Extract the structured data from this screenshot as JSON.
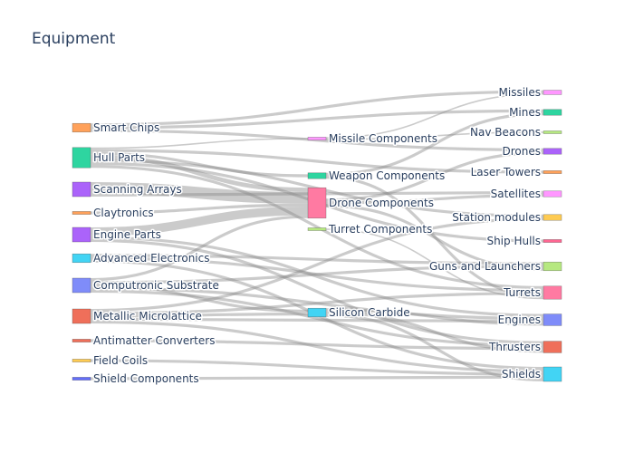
{
  "title": "Equipment",
  "diagram": {
    "type": "sankey",
    "nodes": [
      {
        "id": "smart_chips",
        "label": "Smart Chips",
        "color": "#FFA15A"
      },
      {
        "id": "hull_parts",
        "label": "Hull Parts",
        "color": "#2ED5A0"
      },
      {
        "id": "scanning_arrays",
        "label": "Scanning Arrays",
        "color": "#AB63FA"
      },
      {
        "id": "claytronics",
        "label": "Claytronics",
        "color": "#FFA15A"
      },
      {
        "id": "engine_parts",
        "label": "Engine Parts",
        "color": "#AB63FA"
      },
      {
        "id": "advanced_electronics",
        "label": "Advanced Electronics",
        "color": "#42D4F4"
      },
      {
        "id": "computronic_substrate",
        "label": "Computronic Substrate",
        "color": "#7F8CF9"
      },
      {
        "id": "metallic_microlattice",
        "label": "Metallic Microlattice",
        "color": "#EF6F5A"
      },
      {
        "id": "antimatter_converters",
        "label": "Antimatter Converters",
        "color": "#EF6F5A"
      },
      {
        "id": "field_coils",
        "label": "Field Coils",
        "color": "#FECB52"
      },
      {
        "id": "shield_components",
        "label": "Shield Components",
        "color": "#636EFA"
      },
      {
        "id": "missile_components",
        "label": "Missile Components",
        "color": "#FF97FF"
      },
      {
        "id": "weapon_components",
        "label": "Weapon Components",
        "color": "#2ED5A0"
      },
      {
        "id": "drone_components",
        "label": "Drone Components",
        "color": "#FF7AA2"
      },
      {
        "id": "turret_components",
        "label": "Turret Components",
        "color": "#B6E880"
      },
      {
        "id": "silicon_carbide",
        "label": "Silicon Carbide",
        "color": "#42D4F4"
      },
      {
        "id": "missiles",
        "label": "Missiles",
        "color": "#FF97FF"
      },
      {
        "id": "mines",
        "label": "Mines",
        "color": "#2ED5A0"
      },
      {
        "id": "nav_beacons",
        "label": "Nav Beacons",
        "color": "#B6E880"
      },
      {
        "id": "drones",
        "label": "Drones",
        "color": "#AB63FA"
      },
      {
        "id": "laser_towers",
        "label": "Laser Towers",
        "color": "#FFA15A"
      },
      {
        "id": "satellites",
        "label": "Satellites",
        "color": "#FF97FF"
      },
      {
        "id": "station_modules",
        "label": "Station modules",
        "color": "#FECB52"
      },
      {
        "id": "ship_hulls",
        "label": "Ship Hulls",
        "color": "#FF6692"
      },
      {
        "id": "guns_and_launchers",
        "label": "Guns and Launchers",
        "color": "#B6E880"
      },
      {
        "id": "turrets",
        "label": "Turrets",
        "color": "#FF7AA2"
      },
      {
        "id": "engines",
        "label": "Engines",
        "color": "#7F8CF9"
      },
      {
        "id": "thrusters",
        "label": "Thrusters",
        "color": "#EF6F5A"
      },
      {
        "id": "shields",
        "label": "Shields",
        "color": "#42D4F4"
      }
    ],
    "links": [
      {
        "source": "smart_chips",
        "target": "missiles",
        "value": 2
      },
      {
        "source": "smart_chips",
        "target": "mines",
        "value": 2
      },
      {
        "source": "smart_chips",
        "target": "drones",
        "value": 2
      },
      {
        "source": "hull_parts",
        "target": "missile_components",
        "value": 1
      },
      {
        "source": "hull_parts",
        "target": "weapon_components",
        "value": 2
      },
      {
        "source": "hull_parts",
        "target": "drone_components",
        "value": 3
      },
      {
        "source": "hull_parts",
        "target": "ship_hulls",
        "value": 2
      },
      {
        "source": "hull_parts",
        "target": "station_modules",
        "value": 2
      },
      {
        "source": "hull_parts",
        "target": "turrets",
        "value": 2
      },
      {
        "source": "hull_parts",
        "target": "laser_towers",
        "value": 2
      },
      {
        "source": "scanning_arrays",
        "target": "drone_components",
        "value": 8
      },
      {
        "source": "scanning_arrays",
        "target": "satellites",
        "value": 2
      },
      {
        "source": "claytronics",
        "target": "drone_components",
        "value": 2
      },
      {
        "source": "engine_parts",
        "target": "drone_components",
        "value": 6
      },
      {
        "source": "engine_parts",
        "target": "engines",
        "value": 2
      },
      {
        "source": "engine_parts",
        "target": "thrusters",
        "value": 2
      },
      {
        "source": "advanced_electronics",
        "target": "guns_and_launchers",
        "value": 2
      },
      {
        "source": "advanced_electronics",
        "target": "turrets",
        "value": 2
      },
      {
        "source": "advanced_electronics",
        "target": "shields",
        "value": 2
      },
      {
        "source": "computronic_substrate",
        "target": "silicon_carbide",
        "value": 2
      },
      {
        "source": "computronic_substrate",
        "target": "drone_components",
        "value": 2
      },
      {
        "source": "computronic_substrate",
        "target": "engines",
        "value": 2
      },
      {
        "source": "computronic_substrate",
        "target": "thrusters",
        "value": 2
      },
      {
        "source": "computronic_substrate",
        "target": "guns_and_launchers",
        "value": 2
      },
      {
        "source": "metallic_microlattice",
        "target": "silicon_carbide",
        "value": 2
      },
      {
        "source": "metallic_microlattice",
        "target": "station_modules",
        "value": 2
      },
      {
        "source": "metallic_microlattice",
        "target": "turrets",
        "value": 2
      },
      {
        "source": "metallic_microlattice",
        "target": "engines",
        "value": 2
      },
      {
        "source": "metallic_microlattice",
        "target": "shields",
        "value": 2
      },
      {
        "source": "antimatter_converters",
        "target": "thrusters",
        "value": 2
      },
      {
        "source": "field_coils",
        "target": "shields",
        "value": 2
      },
      {
        "source": "shield_components",
        "target": "shields",
        "value": 2
      },
      {
        "source": "missile_components",
        "target": "missiles",
        "value": 1
      },
      {
        "source": "missile_components",
        "target": "nav_beacons",
        "value": 1
      },
      {
        "source": "weapon_components",
        "target": "mines",
        "value": 2
      },
      {
        "source": "weapon_components",
        "target": "turrets",
        "value": 2
      },
      {
        "source": "drone_components",
        "target": "drones",
        "value": 2
      },
      {
        "source": "drone_components",
        "target": "satellites",
        "value": 2
      },
      {
        "source": "drone_components",
        "target": "guns_and_launchers",
        "value": 2
      },
      {
        "source": "turret_components",
        "target": "turrets",
        "value": 1
      },
      {
        "source": "silicon_carbide",
        "target": "engines",
        "value": 2
      },
      {
        "source": "silicon_carbide",
        "target": "thrusters",
        "value": 2
      },
      {
        "source": "silicon_carbide",
        "target": "shields",
        "value": 2
      }
    ]
  }
}
